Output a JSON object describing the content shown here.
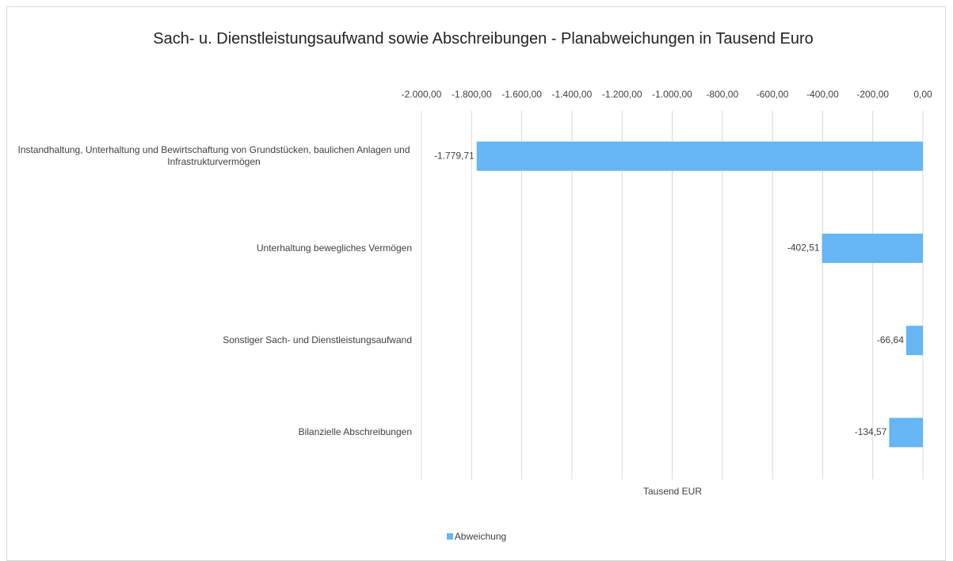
{
  "chart_data": {
    "type": "bar",
    "orientation": "horizontal",
    "title": "Sach- u. Dienstleistungsaufwand sowie Abschreibungen - Planabweichungen in Tausend Euro",
    "xlabel": "Tausend EUR",
    "categories": [
      "Instandhaltung, Unterhaltung und Bewirtschaftung von Grundstücken, baulichen Anlagen und Infrastrukturvermögen",
      "Unterhaltung bewegliches Vermögen",
      "Sonstiger Sach- und Dienstleistungsaufwand",
      "Bilanzielle Abschreibungen"
    ],
    "series": [
      {
        "name": "Abweichung",
        "color": "#66b5f5",
        "values": [
          -1779.71,
          -402.51,
          -66.64,
          -134.57
        ],
        "value_labels": [
          "-1.779,71",
          "-402,51",
          "-66,64",
          "-134,57"
        ]
      }
    ],
    "xlim": [
      -2000,
      0
    ],
    "xticks": [
      {
        "value": -2000,
        "label": "-2.000,00"
      },
      {
        "value": -1800,
        "label": "-1.800,00"
      },
      {
        "value": -1600,
        "label": "-1.600,00"
      },
      {
        "value": -1400,
        "label": "-1.400,00"
      },
      {
        "value": -1200,
        "label": "-1.200,00"
      },
      {
        "value": -1000,
        "label": "-1.000,00"
      },
      {
        "value": -800,
        "label": "-800,00"
      },
      {
        "value": -600,
        "label": "-600,00"
      },
      {
        "value": -400,
        "label": "-400,00"
      },
      {
        "value": -200,
        "label": "-200,00"
      },
      {
        "value": 0,
        "label": "0,00"
      }
    ],
    "grid": true,
    "legend": "bottom"
  }
}
